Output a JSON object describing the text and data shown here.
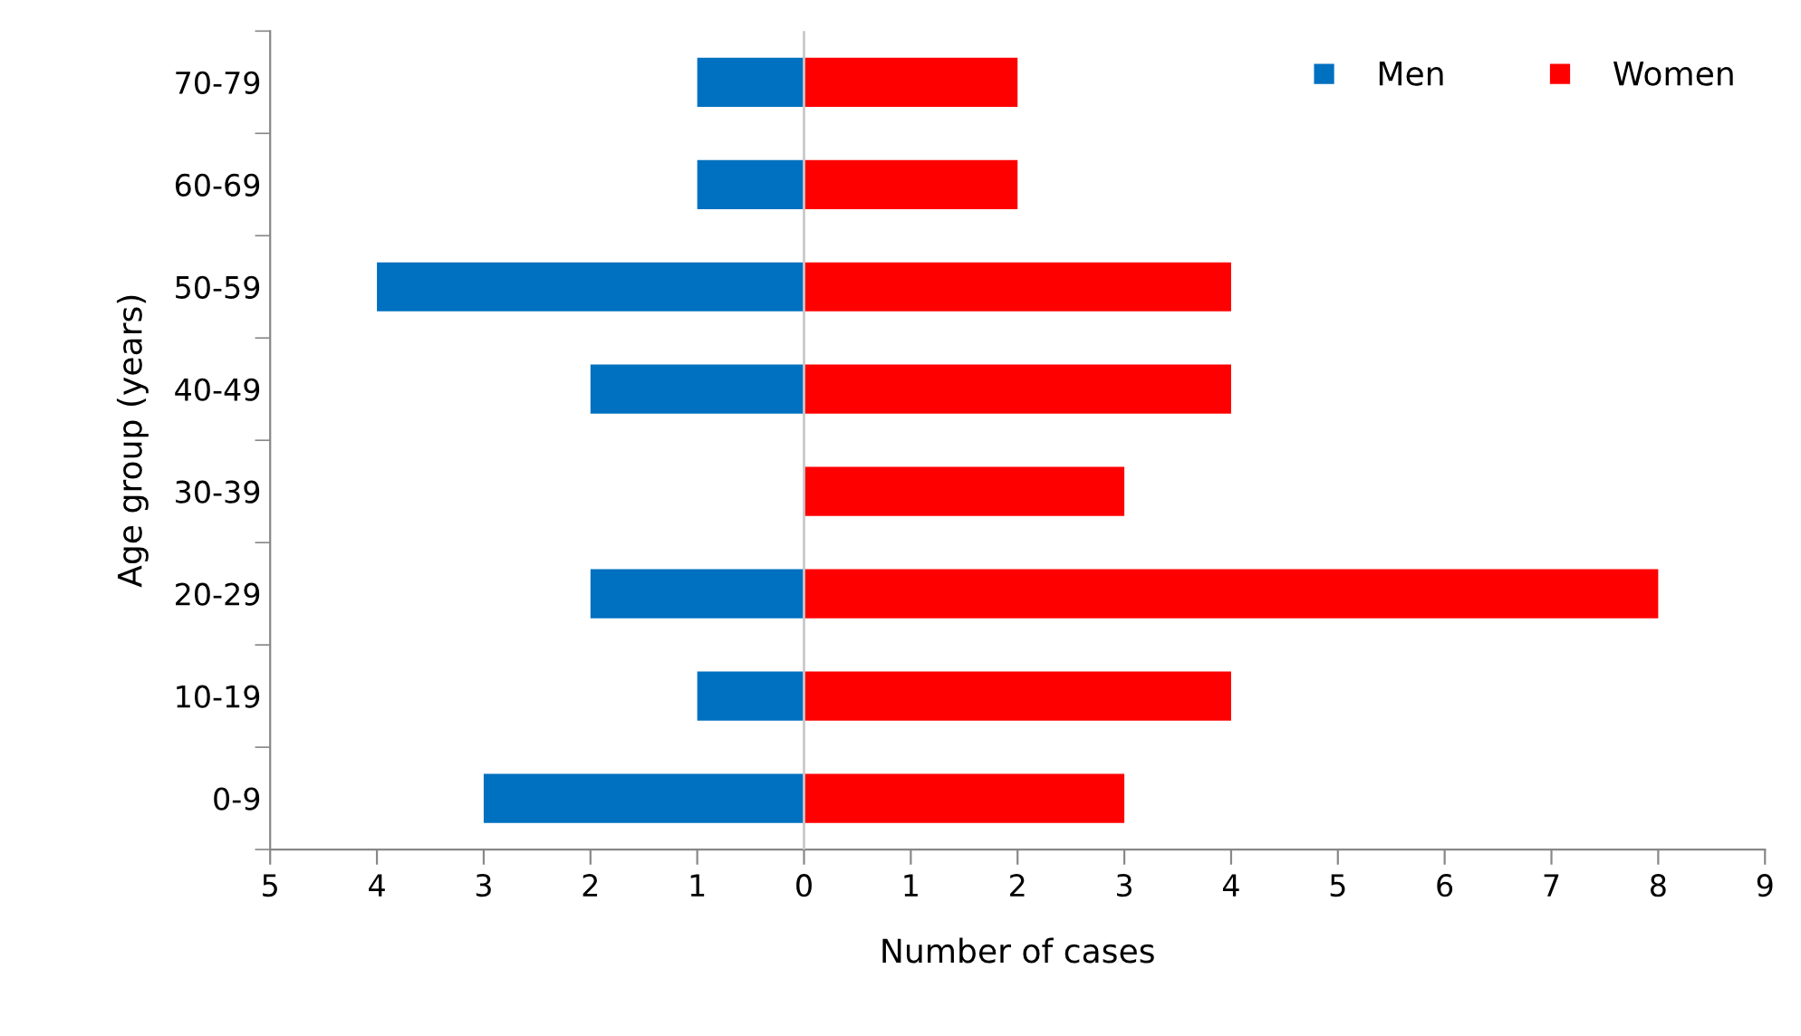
{
  "chart_data": {
    "type": "bar",
    "orientation": "horizontal",
    "stacked": true,
    "xlabel": "Number of cases",
    "ylabel": "Age group (years)",
    "categories": [
      "70-79",
      "60-69",
      "50-59",
      "40-49",
      "30-39",
      "20-29",
      "10-19",
      "0-9"
    ],
    "series": [
      {
        "name": "Men",
        "color": "#0070c0",
        "values": [
          -1,
          -1,
          -4,
          -2,
          0,
          -2,
          -1,
          -3
        ]
      },
      {
        "name": "Women",
        "color": "#ff0000",
        "values": [
          2,
          2,
          4,
          4,
          3,
          8,
          4,
          3
        ]
      }
    ],
    "xlim": [
      -5,
      9
    ],
    "xticks": [
      {
        "value": -5,
        "label": "5"
      },
      {
        "value": -4,
        "label": "4"
      },
      {
        "value": -3,
        "label": "3"
      },
      {
        "value": -2,
        "label": "2"
      },
      {
        "value": -1,
        "label": "1"
      },
      0,
      1,
      2,
      3,
      4,
      5,
      6,
      7,
      8,
      9
    ],
    "ref_lines": [
      {
        "axis": "x",
        "value": 0,
        "color": "#c8c8c8"
      }
    ],
    "grid": false,
    "legend": "top right"
  }
}
